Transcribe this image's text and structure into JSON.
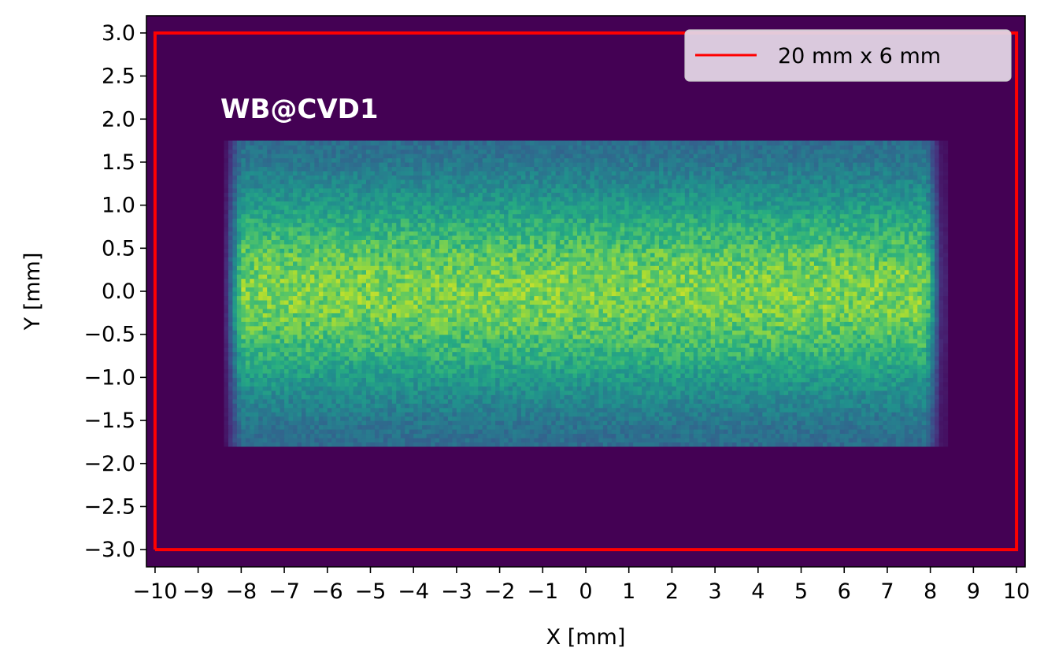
{
  "chart_data": {
    "type": "heatmap",
    "title": "",
    "annotation": "WB@CVD1",
    "xlabel": "X [mm]",
    "ylabel": "Y [mm]",
    "xlim": [
      -10.2,
      10.2
    ],
    "ylim": [
      -3.2,
      3.2
    ],
    "xticks": [
      -10,
      -9,
      -8,
      -7,
      -6,
      -5,
      -4,
      -3,
      -2,
      -1,
      0,
      1,
      2,
      3,
      4,
      5,
      6,
      7,
      8,
      9,
      10
    ],
    "xtick_labels": [
      "−10",
      "−9",
      "−8",
      "−7",
      "−6",
      "−5",
      "−4",
      "−3",
      "−2",
      "−1",
      "0",
      "1",
      "2",
      "3",
      "4",
      "5",
      "6",
      "7",
      "8",
      "9",
      "10"
    ],
    "yticks": [
      -3.0,
      -2.5,
      -2.0,
      -1.5,
      -1.0,
      -0.5,
      0.0,
      0.5,
      1.0,
      1.5,
      2.0,
      2.5,
      3.0
    ],
    "ytick_labels": [
      "−3.0",
      "−2.5",
      "−2.0",
      "−1.5",
      "−1.0",
      "−0.5",
      "0.0",
      "0.5",
      "1.0",
      "1.5",
      "2.0",
      "2.5",
      "3.0"
    ],
    "grid": false,
    "colormap": "viridis",
    "background_color": "#440154",
    "heatmap": {
      "x_range": [
        -8.4,
        8.4
      ],
      "y_range": [
        -1.8,
        1.75
      ],
      "core_x_range": [
        -8.0,
        7.9
      ],
      "x_bin_width": 0.1,
      "y_bin_width": 0.05,
      "profile": "uniform in X, Gaussian-like peak in Y at 0, noisy"
    },
    "series": [
      {
        "name": "20 mm x 6 mm",
        "type": "rectangle",
        "x": [
          -10,
          10,
          10,
          -10,
          -10
        ],
        "y": [
          -3,
          -3,
          3,
          3,
          -3
        ],
        "color": "#ff0000"
      }
    ],
    "legend": {
      "position": "top-right"
    }
  }
}
